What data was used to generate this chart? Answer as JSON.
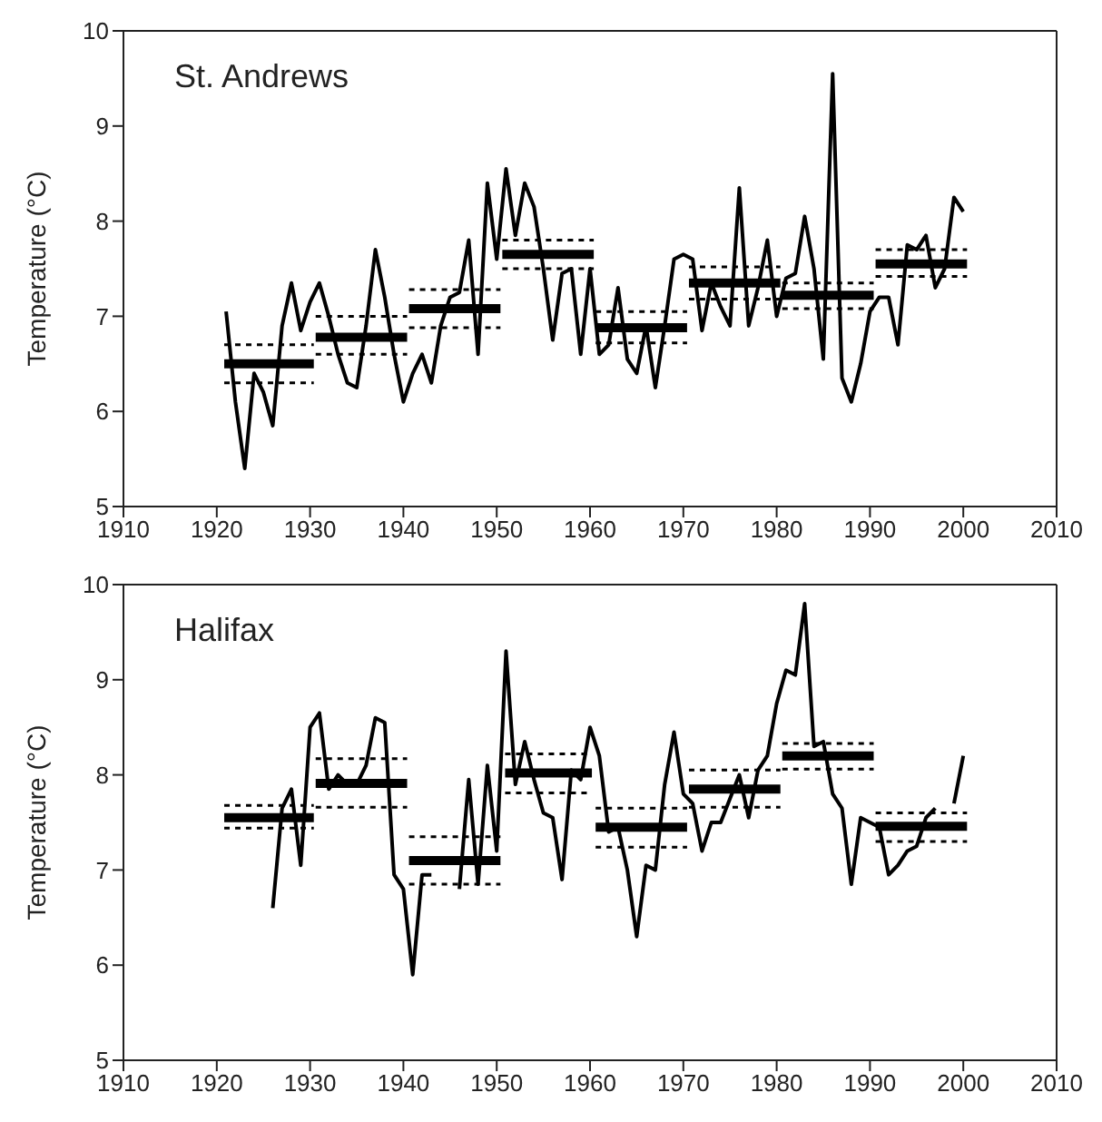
{
  "chart_data": [
    {
      "type": "line",
      "title": "St. Andrews",
      "ylabel": "Temperature (°C)",
      "xlim": [
        1910,
        2010
      ],
      "xticks": [
        1910,
        1920,
        1930,
        1940,
        1950,
        1960,
        1970,
        1980,
        1990,
        2000,
        2010
      ],
      "ylim": [
        5,
        10
      ],
      "yticks": [
        5,
        6,
        7,
        8,
        9,
        10
      ],
      "grid": false,
      "marker": "none",
      "series": [
        {
          "color": "#000000",
          "line_style": "solid",
          "x": [
            1921,
            1922,
            1923,
            1924,
            1925,
            1926,
            1927,
            1928,
            1929,
            1930,
            1931,
            1932,
            1933,
            1934,
            1935,
            1936,
            1937,
            1938,
            1939,
            1940,
            1941,
            1942,
            1943,
            1944,
            1945,
            1946,
            1947,
            1948,
            1949,
            1950,
            1951,
            1952,
            1953,
            1954,
            1955,
            1956,
            1957,
            1958,
            1959,
            1960,
            1961,
            1962,
            1963,
            1964,
            1965,
            1966,
            1967,
            1968,
            1969,
            1970,
            1971,
            1972,
            1973,
            1974,
            1975,
            1976,
            1977,
            1978,
            1979,
            1980,
            1981,
            1982,
            1983,
            1984,
            1985,
            1986,
            1987,
            1988,
            1989,
            1990,
            1991,
            1992,
            1993,
            1994,
            1995,
            1996,
            1997,
            1998,
            1999,
            2000
          ],
          "values": [
            7.05,
            6.1,
            5.4,
            6.4,
            6.2,
            5.85,
            6.9,
            7.35,
            6.85,
            7.15,
            7.35,
            7.0,
            6.6,
            6.3,
            6.25,
            6.9,
            7.7,
            7.2,
            6.6,
            6.1,
            6.4,
            6.6,
            6.3,
            6.9,
            7.2,
            7.25,
            7.8,
            6.6,
            8.4,
            7.6,
            8.55,
            7.85,
            8.4,
            8.15,
            7.5,
            6.75,
            7.45,
            7.5,
            6.6,
            7.5,
            6.6,
            6.7,
            7.3,
            6.55,
            6.4,
            6.9,
            6.25,
            6.9,
            7.6,
            7.65,
            7.6,
            6.85,
            7.35,
            7.1,
            6.9,
            8.35,
            6.9,
            7.3,
            7.8,
            7.0,
            7.4,
            7.45,
            8.05,
            7.5,
            6.55,
            9.55,
            6.35,
            6.1,
            6.5,
            7.05,
            7.2,
            7.2,
            6.7,
            7.75,
            7.7,
            7.85,
            7.3,
            7.5,
            8.25,
            8.1
          ]
        },
        {
          "type": "step",
          "color": "#000000",
          "line_style": "solid",
          "x": [
            1920.8,
            1930.4,
            1930.5,
            1930.6,
            1940.4,
            1940.5,
            1940.6,
            1950.4,
            1950.5,
            1950.6,
            1960.4,
            1960.5,
            1960.6,
            1970.4,
            1970.5,
            1970.6,
            1980.4,
            1980.5,
            1980.6,
            1990.4,
            1990.5,
            1990.6,
            2000.4
          ],
          "values": [
            6.5,
            6.5,
            null,
            6.78,
            6.78,
            null,
            7.08,
            7.08,
            null,
            7.65,
            7.65,
            null,
            6.88,
            6.88,
            null,
            7.35,
            7.35,
            null,
            7.22,
            7.22,
            null,
            7.55,
            7.55
          ]
        },
        {
          "color": "#000000",
          "line_style": "dotted",
          "x": [
            1920.8,
            1930.4,
            1930.5,
            1930.6,
            1940.4,
            1940.5,
            1940.6,
            1950.4,
            1950.5,
            1950.6,
            1960.4,
            1960.5,
            1960.6,
            1970.4,
            1970.5,
            1970.6,
            1980.4,
            1980.5,
            1980.6,
            1990.4,
            1990.5,
            1990.6,
            2000.4
          ],
          "values": [
            6.7,
            6.7,
            null,
            7.0,
            7.0,
            null,
            7.28,
            7.28,
            null,
            7.8,
            7.8,
            null,
            7.05,
            7.05,
            null,
            7.52,
            7.52,
            null,
            7.35,
            7.35,
            null,
            7.7,
            7.7
          ]
        },
        {
          "color": "#000000",
          "line_style": "dotted",
          "x": [
            1920.8,
            1930.4,
            1930.5,
            1930.6,
            1940.4,
            1940.5,
            1940.6,
            1950.4,
            1950.5,
            1950.6,
            1960.4,
            1960.5,
            1960.6,
            1970.4,
            1970.5,
            1970.6,
            1980.4,
            1980.5,
            1980.6,
            1990.4,
            1990.5,
            1990.6,
            2000.4
          ],
          "values": [
            6.3,
            6.3,
            null,
            6.6,
            6.6,
            null,
            6.88,
            6.88,
            null,
            7.5,
            7.5,
            null,
            6.72,
            6.72,
            null,
            7.18,
            7.18,
            null,
            7.08,
            7.08,
            null,
            7.42,
            7.42
          ]
        }
      ]
    },
    {
      "type": "line",
      "title": "Halifax",
      "ylabel": "Temperature (°C)",
      "xlim": [
        1910,
        2010
      ],
      "xticks": [
        1910,
        1920,
        1930,
        1940,
        1950,
        1960,
        1970,
        1980,
        1990,
        2000,
        2010
      ],
      "ylim": [
        5,
        10
      ],
      "yticks": [
        5,
        6,
        7,
        8,
        9,
        10
      ],
      "grid": false,
      "marker": "none",
      "series": [
        {
          "color": "#000000",
          "line_style": "solid",
          "x": [
            1926,
            1927,
            1928,
            1929,
            1930,
            1931,
            1932,
            1933,
            1934,
            1935,
            1936,
            1937,
            1938,
            1939,
            1940,
            1941,
            1942,
            1943,
            1944,
            1945,
            1946,
            1947,
            1948,
            1949,
            1950,
            1951,
            1952,
            1953,
            1954,
            1955,
            1956,
            1957,
            1958,
            1959,
            1960,
            1961,
            1962,
            1963,
            1964,
            1965,
            1966,
            1967,
            1968,
            1969,
            1970,
            1971,
            1972,
            1973,
            1974,
            1975,
            1976,
            1977,
            1978,
            1979,
            1980,
            1981,
            1982,
            1983,
            1984,
            1985,
            1986,
            1987,
            1988,
            1989,
            1990,
            1991,
            1992,
            1993,
            1994,
            1995,
            1996,
            1997,
            1998,
            1999,
            2000
          ],
          "values": [
            6.6,
            7.65,
            7.85,
            7.05,
            8.5,
            8.65,
            7.85,
            8.0,
            7.9,
            7.9,
            8.1,
            8.6,
            8.55,
            6.95,
            6.8,
            5.9,
            6.95,
            6.95,
            null,
            null,
            6.8,
            7.95,
            6.85,
            8.1,
            7.2,
            9.3,
            7.9,
            8.35,
            7.95,
            7.6,
            7.55,
            6.9,
            8.05,
            7.95,
            8.5,
            8.2,
            7.4,
            7.45,
            7.0,
            6.3,
            7.05,
            7.0,
            7.9,
            8.45,
            7.8,
            7.7,
            7.2,
            7.5,
            7.5,
            7.75,
            8.0,
            7.55,
            8.05,
            8.2,
            8.75,
            9.1,
            9.05,
            9.8,
            8.3,
            8.35,
            7.8,
            7.65,
            6.85,
            7.55,
            7.5,
            7.45,
            6.95,
            7.05,
            7.2,
            7.25,
            7.55,
            7.65,
            null,
            7.7,
            8.2
          ]
        },
        {
          "type": "step",
          "color": "#000000",
          "line_style": "solid",
          "x": [
            1920.8,
            1930.4,
            1930.5,
            1930.6,
            1940.4,
            1940.5,
            1940.6,
            1950.4,
            1950.5,
            1950.9,
            1960.2,
            1960.5,
            1960.6,
            1970.4,
            1970.5,
            1970.6,
            1980.4,
            1980.5,
            1980.6,
            1990.4,
            1990.5,
            1990.6,
            2000.4
          ],
          "values": [
            7.55,
            7.55,
            null,
            7.91,
            7.91,
            null,
            7.1,
            7.1,
            null,
            8.02,
            8.02,
            null,
            7.45,
            7.45,
            null,
            7.85,
            7.85,
            null,
            8.2,
            8.2,
            null,
            7.46,
            7.46
          ]
        },
        {
          "color": "#000000",
          "line_style": "dotted",
          "x": [
            1920.8,
            1930.4,
            1930.5,
            1930.6,
            1940.4,
            1940.5,
            1940.6,
            1950.4,
            1950.5,
            1950.9,
            1960.2,
            1960.5,
            1960.6,
            1970.4,
            1970.5,
            1970.6,
            1980.4,
            1980.5,
            1980.6,
            1990.4,
            1990.5,
            1990.6,
            2000.4
          ],
          "values": [
            7.68,
            7.68,
            null,
            8.17,
            8.17,
            null,
            7.35,
            7.35,
            null,
            8.22,
            8.22,
            null,
            7.65,
            7.65,
            null,
            8.05,
            8.05,
            null,
            8.33,
            8.33,
            null,
            7.6,
            7.6
          ]
        },
        {
          "color": "#000000",
          "line_style": "dotted",
          "x": [
            1920.8,
            1930.4,
            1930.5,
            1930.6,
            1940.4,
            1940.5,
            1940.6,
            1950.4,
            1950.5,
            1950.9,
            1960.2,
            1960.5,
            1960.6,
            1970.4,
            1970.5,
            1970.6,
            1980.4,
            1980.5,
            1980.6,
            1990.4,
            1990.5,
            1990.6,
            2000.4
          ],
          "values": [
            7.44,
            7.44,
            null,
            7.66,
            7.66,
            null,
            6.85,
            6.85,
            null,
            7.81,
            7.81,
            null,
            7.24,
            7.24,
            null,
            7.66,
            7.66,
            null,
            8.06,
            8.06,
            null,
            7.3,
            7.3
          ]
        }
      ]
    }
  ]
}
